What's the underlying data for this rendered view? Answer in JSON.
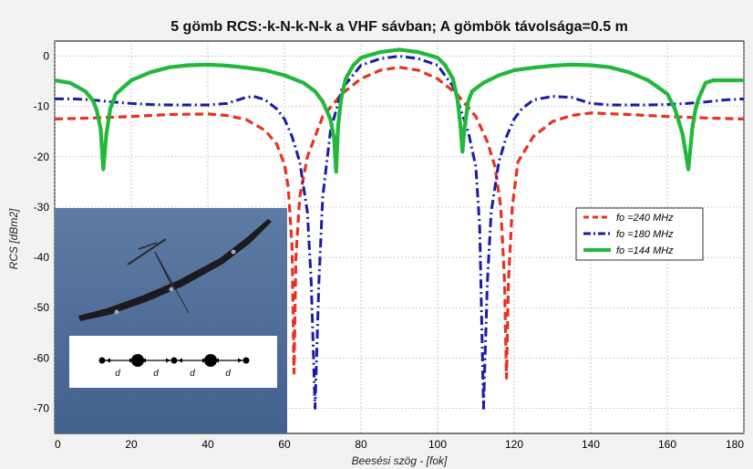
{
  "chart_data": {
    "type": "line",
    "title": "5 gömb RCS:-k-N-k-N-k a VHF sávban; A gömbök távolsága=0.5 m",
    "xlabel": "Beesési szög - [fok]",
    "ylabel": "RCS [dBm2]",
    "xlim": [
      0,
      180
    ],
    "ylim": [
      -75,
      3
    ],
    "xticks": [
      "0",
      "20",
      "40",
      "60",
      "80",
      "100",
      "120",
      "140",
      "160",
      "180"
    ],
    "yticks": [
      "0",
      "-10",
      "-20",
      "-30",
      "-40",
      "-50",
      "-60",
      "-70"
    ],
    "grid": true,
    "legend": "right",
    "series": [
      {
        "name": "fo =240 MHz",
        "color": "#e8321e",
        "dash": "dashed",
        "x": [
          0,
          10,
          20,
          30,
          40,
          45,
          50,
          55,
          58,
          60,
          61,
          62,
          62.5,
          63,
          64,
          66,
          70,
          75,
          80,
          85,
          90,
          95,
          100,
          105,
          110,
          113,
          115,
          116.5,
          117.5,
          118,
          118.5,
          119.5,
          121,
          125,
          130,
          135,
          140,
          150,
          160,
          170,
          180
        ],
        "y": [
          -12.5,
          -12.3,
          -12,
          -11.6,
          -11.5,
          -11.8,
          -12.6,
          -14.8,
          -17.5,
          -21.5,
          -26,
          -38,
          -63,
          -40,
          -28,
          -20,
          -12,
          -7.5,
          -4.5,
          -2.8,
          -2.2,
          -2.8,
          -4.5,
          -7.5,
          -12,
          -17,
          -22,
          -30,
          -45,
          -64,
          -45,
          -30,
          -21,
          -16,
          -13,
          -11.8,
          -11.3,
          -11.6,
          -12,
          -12.3,
          -12.5
        ]
      },
      {
        "name": "fo =180 MHz",
        "color": "#1a1aa8",
        "dash": "dashdot",
        "x": [
          0,
          5,
          10,
          15,
          20,
          25,
          30,
          35,
          40,
          45,
          50,
          52,
          55,
          58,
          60,
          62,
          64,
          66,
          67,
          68,
          69,
          70,
          72,
          75,
          80,
          85,
          90,
          95,
          100,
          104,
          108,
          110,
          111,
          112,
          113,
          114,
          116,
          118,
          120,
          122,
          125,
          130,
          135,
          140,
          145,
          150,
          155,
          160,
          165,
          170,
          175,
          180
        ],
        "y": [
          -8.5,
          -8.5,
          -8.7,
          -9.1,
          -9.4,
          -9.6,
          -9.7,
          -9.7,
          -9.7,
          -9.4,
          -8.2,
          -8,
          -8.7,
          -10.5,
          -12.5,
          -16,
          -21,
          -31,
          -45,
          -70,
          -45,
          -28,
          -15,
          -6.5,
          -1.8,
          -0.5,
          0,
          -0.5,
          -1.8,
          -6,
          -15,
          -22,
          -34,
          -70,
          -45,
          -31,
          -21,
          -16,
          -12.5,
          -10.5,
          -8.7,
          -8,
          -8.2,
          -9.4,
          -9.7,
          -9.7,
          -9.7,
          -9.6,
          -9.4,
          -9.1,
          -8.7,
          -8.5
        ]
      },
      {
        "name": "fo =144 MHz",
        "color": "#22b83c",
        "dash": "solid",
        "x": [
          0,
          4,
          8,
          10,
          11,
          12,
          12.7,
          13.5,
          14.5,
          16,
          20,
          25,
          30,
          35,
          40,
          45,
          50,
          55,
          60,
          65,
          68,
          70,
          72,
          73,
          73.5,
          74,
          74.8,
          76,
          78,
          80,
          85,
          90,
          95,
          100,
          102,
          104,
          105.2,
          106,
          106.5,
          107,
          108,
          109,
          112,
          116,
          120,
          125,
          130,
          135,
          140,
          145,
          150,
          155,
          160,
          162,
          164,
          165.5,
          166.5,
          167.3,
          168,
          169,
          170,
          172,
          176,
          180
        ],
        "y": [
          -4.8,
          -5.3,
          -7,
          -8.8,
          -10.8,
          -14.5,
          -22.5,
          -15.5,
          -10.5,
          -7.5,
          -4.8,
          -3.2,
          -2.2,
          -1.8,
          -1.7,
          -1.9,
          -2.3,
          -2.8,
          -3.8,
          -5.3,
          -7,
          -9,
          -12.5,
          -16.5,
          -23,
          -14,
          -8.5,
          -4.5,
          -1.8,
          -0.3,
          0.8,
          1.3,
          0.8,
          -0.3,
          -1.8,
          -4.5,
          -8.5,
          -14,
          -19,
          -14.5,
          -9,
          -7,
          -5.3,
          -3.8,
          -2.8,
          -2.3,
          -1.9,
          -1.7,
          -1.8,
          -2.2,
          -3.2,
          -4.8,
          -7.5,
          -10.5,
          -15.5,
          -22.5,
          -14.5,
          -10.8,
          -8.8,
          -7,
          -5.3,
          -4.8,
          -4.8,
          -4.8
        ]
      }
    ]
  },
  "inset": {
    "sphere_labels": [
      "d",
      "d",
      "d",
      "d"
    ],
    "icons": [
      "airship-balloon-icon",
      "sphere-chain-diagram",
      "crescent-moon-icon"
    ]
  }
}
